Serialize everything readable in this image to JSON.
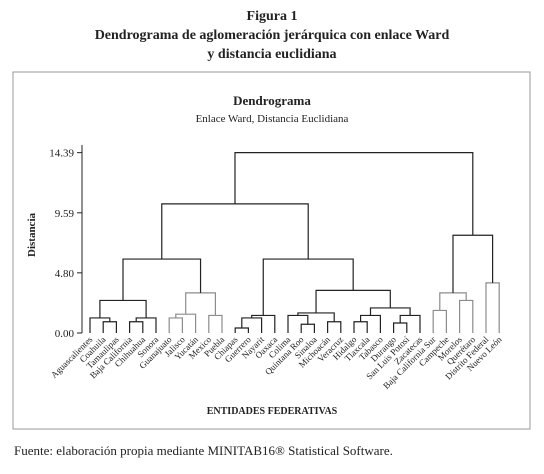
{
  "figure": {
    "label": "Figura 1",
    "title_lines": [
      "Dendrograma de aglomeración jerárquica con enlace Ward",
      "y distancia euclidiana"
    ]
  },
  "chart_data": {
    "type": "dendrogram",
    "title": "Dendrograma",
    "subtitle": "Enlace Ward, Distancia Euclidiana",
    "ylabel": "Distancia",
    "xlabel": "ENTIDADES FEDERATIVAS",
    "ylim": [
      0,
      15
    ],
    "yticks": [
      {
        "value": 0,
        "label": "0.00"
      },
      {
        "value": 4.8,
        "label": "4.80"
      },
      9.59,
      14.39
    ],
    "color": "#222222",
    "tree": {
      "height": 14.39,
      "children": [
        {
          "height": 10.3,
          "children": [
            {
              "height": 5.9,
              "children": [
                {
                  "height": 2.6,
                  "children": [
                    {
                      "height": 1.2,
                      "children": [
                        "Aguascalientes",
                        {
                          "height": 0.9,
                          "children": [
                            "Coahuila",
                            "Tamaulipas"
                          ]
                        }
                      ]
                    },
                    {
                      "height": 1.2,
                      "children": [
                        {
                          "height": 0.9,
                          "children": [
                            "Baja California",
                            "Chihuahua"
                          ]
                        },
                        "Sonora"
                      ]
                    }
                  ]
                },
                {
                  "height": 3.2,
                  "color": "#8c8c8c",
                  "children": [
                    {
                      "height": 1.5,
                      "children": [
                        {
                          "height": 1.2,
                          "children": [
                            "Guanajuato",
                            "Jalisco"
                          ]
                        },
                        "Yucatán"
                      ]
                    },
                    {
                      "height": 1.4,
                      "children": [
                        "Mexico",
                        "Puebla"
                      ]
                    }
                  ]
                }
              ]
            },
            {
              "height": 5.9,
              "children": [
                {
                  "height": 1.4,
                  "children": [
                    {
                      "height": 1.2,
                      "children": [
                        {
                          "height": 0.4,
                          "children": [
                            "Chiapas",
                            "Guerrero"
                          ]
                        },
                        "Nayarit"
                      ]
                    },
                    "Oaxaca"
                  ]
                },
                {
                  "height": 3.4,
                  "children": [
                    {
                      "height": 1.6,
                      "children": [
                        {
                          "height": 1.4,
                          "children": [
                            "Colima",
                            {
                              "height": 0.7,
                              "children": [
                                "Quintana Roo",
                                "Sinaloa"
                              ]
                            }
                          ]
                        },
                        {
                          "height": 0.9,
                          "children": [
                            "Michoacán",
                            "Veracruz"
                          ]
                        }
                      ]
                    },
                    {
                      "height": 2.0,
                      "children": [
                        {
                          "height": 1.4,
                          "children": [
                            {
                              "height": 0.9,
                              "children": [
                                "Hidalgo",
                                "Tlaxcala"
                              ]
                            },
                            "Tabasco"
                          ]
                        },
                        {
                          "height": 1.4,
                          "children": [
                            {
                              "height": 0.8,
                              "children": [
                                "Durango",
                                "San Luis Potosí"
                              ]
                            },
                            "Zacatecas"
                          ]
                        }
                      ]
                    }
                  ]
                }
              ]
            }
          ]
        },
        {
          "height": 7.8,
          "children": [
            {
              "height": 3.2,
              "color": "#8c8c8c",
              "children": [
                {
                  "height": 1.8,
                  "children": [
                    "Baja California Sur",
                    "Campeche"
                  ]
                },
                {
                  "height": 2.6,
                  "children": [
                    "Morelos",
                    "Querétaro"
                  ]
                }
              ]
            },
            {
              "height": 4.0,
              "color": "#8c8c8c",
              "children": [
                "Distrito Federal",
                "Nuevo León"
              ]
            }
          ]
        }
      ]
    }
  },
  "source": "Fuente: elaboración propia mediante MINITAB16® Statistical Software."
}
